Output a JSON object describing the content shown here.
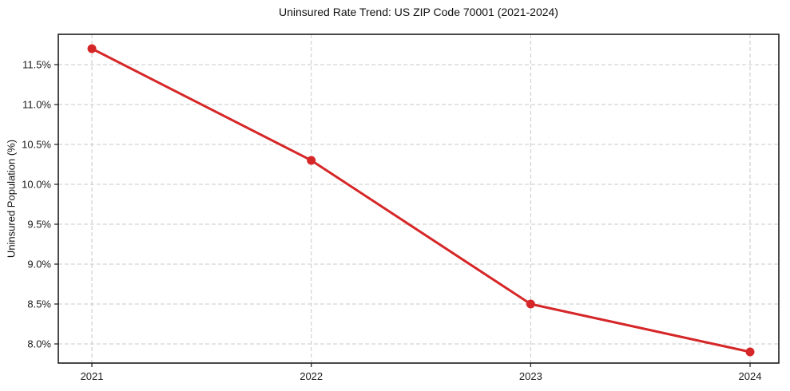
{
  "page": {
    "background": "#ffffff"
  },
  "chart_data": {
    "type": "line",
    "title": "Uninsured Rate Trend: US ZIP Code 70001 (2021-2024)",
    "xlabel": "",
    "ylabel": "Uninsured Population (%)",
    "x": [
      2021,
      2022,
      2023,
      2024
    ],
    "x_tick_labels": [
      "2021",
      "2022",
      "2023",
      "2024"
    ],
    "series": [
      {
        "name": "Uninsured rate",
        "values": [
          11.7,
          10.3,
          8.5,
          7.9
        ],
        "color": "#d62728",
        "marker": "circle"
      }
    ],
    "y_ticks": [
      8.0,
      8.5,
      9.0,
      9.5,
      10.0,
      10.5,
      11.0,
      11.5
    ],
    "y_tick_labels": [
      "8.0%",
      "8.5%",
      "9.0%",
      "9.5%",
      "10.0%",
      "10.5%",
      "11.0%",
      "11.5%"
    ],
    "ylim": [
      7.76,
      11.88
    ],
    "xlim": [
      2020.847,
      2024.131
    ],
    "grid": true,
    "grid_style": "dashed",
    "grid_color": "#c9c9c9",
    "axis_color": "#1a1a1a",
    "tick_label_color": "#1a1a1a",
    "legend_position": "none"
  }
}
